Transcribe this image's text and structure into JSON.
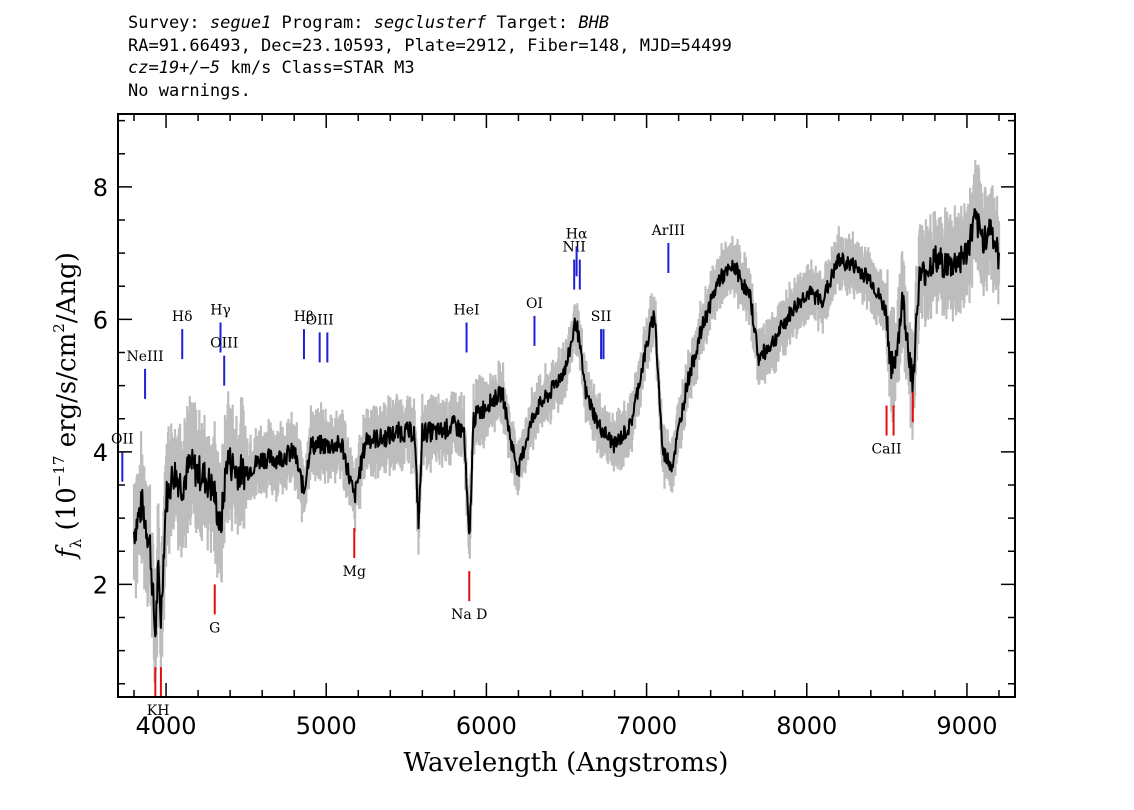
{
  "header": {
    "line1": {
      "survey_label": "Survey: ",
      "survey": "segue1",
      "program_label": " Program: ",
      "program": "segclusterf",
      "target_label": " Target: ",
      "target": "BHB"
    },
    "line2": "RA=91.66493, Dec=23.10593, Plate=2912, Fiber=148, MJD=54499",
    "line3": {
      "cz": "cz=19+/−5",
      "rest": " km/s Class=STAR M3"
    },
    "line4": "No warnings."
  },
  "chart_data": {
    "type": "line",
    "xlabel": "Wavelength (Angstroms)",
    "ylabel_parts": {
      "symbol": "f",
      "sub": "λ",
      "pre": " (10",
      "exp1": "−17",
      "mid": " erg/s/cm",
      "exp2": "2",
      "post": "/Ang)"
    },
    "xlim": [
      3700,
      9300
    ],
    "ylim": [
      0.3,
      9.1
    ],
    "xticks": [
      4000,
      5000,
      6000,
      7000,
      8000,
      9000
    ],
    "yticks": [
      2,
      4,
      6,
      8
    ],
    "xtick_labels": [
      "4000",
      "5000",
      "6000",
      "7000",
      "8000",
      "9000"
    ],
    "ytick_labels": [
      "2",
      "4",
      "6",
      "8"
    ],
    "series": [
      {
        "role": "flux",
        "color": "#000000",
        "x": [
          3800,
          3850,
          3900,
          3933,
          3950,
          3968,
          4000,
          4050,
          4100,
          4150,
          4200,
          4250,
          4300,
          4340,
          4380,
          4450,
          4500,
          4600,
          4700,
          4800,
          4861,
          4900,
          5000,
          5100,
          5175,
          5250,
          5350,
          5450,
          5550,
          5577,
          5600,
          5700,
          5800,
          5860,
          5893,
          5920,
          6000,
          6100,
          6150,
          6200,
          6250,
          6300,
          6400,
          6500,
          6560,
          6620,
          6700,
          6800,
          6900,
          7000,
          7050,
          7100,
          7160,
          7250,
          7350,
          7450,
          7550,
          7650,
          7700,
          7800,
          7900,
          8000,
          8100,
          8200,
          8300,
          8400,
          8498,
          8520,
          8542,
          8600,
          8662,
          8700,
          8800,
          8900,
          9000,
          9050,
          9100,
          9150,
          9200
        ],
        "y": [
          2.8,
          3.2,
          2.6,
          1.2,
          2.2,
          1.5,
          3.3,
          3.7,
          3.5,
          3.8,
          3.7,
          3.6,
          3.4,
          2.8,
          3.9,
          3.7,
          3.7,
          3.9,
          3.9,
          4.0,
          3.4,
          4.1,
          4.1,
          4.1,
          3.3,
          4.2,
          4.2,
          4.3,
          4.3,
          2.9,
          4.3,
          4.3,
          4.4,
          4.3,
          2.6,
          4.5,
          4.7,
          4.9,
          4.2,
          3.7,
          4.2,
          4.6,
          4.9,
          5.3,
          6.0,
          4.9,
          4.4,
          4.1,
          4.4,
          5.6,
          6.1,
          4.0,
          3.8,
          5.0,
          5.9,
          6.6,
          6.8,
          6.3,
          5.4,
          5.7,
          6.1,
          6.4,
          6.3,
          6.9,
          6.8,
          6.6,
          6.1,
          5.4,
          5.2,
          6.3,
          5.0,
          6.6,
          6.9,
          6.8,
          7.0,
          7.5,
          7.2,
          7.4,
          6.9
        ]
      }
    ],
    "lines": [
      {
        "label": "OII",
        "x": 3727,
        "color": "blue",
        "side": "emission",
        "y": 3.55
      },
      {
        "label": "NeIII",
        "x": 3869,
        "color": "blue",
        "side": "emission",
        "y": 4.8
      },
      {
        "label": "K",
        "x": 3933,
        "color": "red",
        "side": "absorption",
        "y": 0.75
      },
      {
        "label": "H",
        "x": 3968,
        "color": "red",
        "side": "absorption",
        "y": 0.75
      },
      {
        "label": "Hδ",
        "x": 4101,
        "color": "blue",
        "side": "emission",
        "y": 5.4
      },
      {
        "label": "G",
        "x": 4304,
        "color": "red",
        "side": "absorption",
        "y": 2.0
      },
      {
        "label": "Hγ",
        "x": 4340,
        "color": "blue",
        "side": "emission",
        "y": 5.5
      },
      {
        "label": "OIII",
        "x": 4363,
        "color": "blue",
        "side": "emission",
        "y": 5.0
      },
      {
        "label": "Hβ",
        "x": 4861,
        "color": "blue",
        "side": "emission",
        "y": 5.4
      },
      {
        "label": "OIII",
        "x": 4959,
        "color": "blue",
        "side": "emission",
        "y": 5.35
      },
      {
        "label": "OIII",
        "x": 5007,
        "color": "blue",
        "side": "emission",
        "y": 5.35
      },
      {
        "label": "Mg",
        "x": 5175,
        "color": "red",
        "side": "absorption",
        "y": 2.85
      },
      {
        "label": "HeI",
        "x": 5876,
        "color": "blue",
        "side": "emission",
        "y": 5.5
      },
      {
        "label": "Na D",
        "x": 5893,
        "color": "red",
        "side": "absorption",
        "y": 2.2
      },
      {
        "label": "OI",
        "x": 6300,
        "color": "blue",
        "side": "emission",
        "y": 5.6
      },
      {
        "label": "NII",
        "x": 6548,
        "color": "blue",
        "side": "emission",
        "y": 6.45
      },
      {
        "label": "Hα",
        "x": 6563,
        "color": "blue",
        "side": "emission",
        "y": 6.65
      },
      {
        "label": "NII",
        "x": 6583,
        "color": "blue",
        "side": "emission",
        "y": 6.45
      },
      {
        "label": "SII",
        "x": 6716,
        "color": "blue",
        "side": "emission",
        "y": 5.4
      },
      {
        "label": "SII",
        "x": 6731,
        "color": "blue",
        "side": "emission",
        "y": 5.4
      },
      {
        "label": "ArIII",
        "x": 7136,
        "color": "blue",
        "side": "emission",
        "y": 6.7
      },
      {
        "label": "CaII",
        "x": 8498,
        "color": "red",
        "side": "absorption",
        "y": 4.7
      },
      {
        "label": "CaII",
        "x": 8542,
        "color": "red",
        "side": "absorption",
        "y": 4.7
      },
      {
        "label": "CaII",
        "x": 8662,
        "color": "red",
        "side": "absorption",
        "y": 4.9
      }
    ]
  }
}
